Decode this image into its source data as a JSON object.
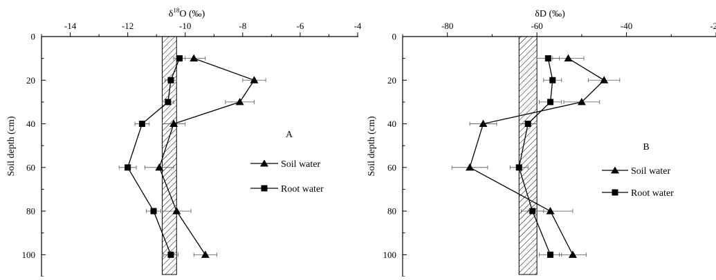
{
  "chart_data": [
    {
      "type": "line",
      "panel_label": "A",
      "title": "",
      "xlabel_main": "δ",
      "xlabel_sup": "18",
      "xlabel_rest": "O  (‰)",
      "ylabel": "Soil depth (cm)",
      "xlim": [
        -15,
        -4
      ],
      "ylim": [
        0,
        110
      ],
      "xticks": [
        -14,
        -12,
        -10,
        -8,
        -6,
        -4
      ],
      "yticks": [
        0,
        20,
        40,
        60,
        80,
        100
      ],
      "band": [
        -10.8,
        -10.3
      ],
      "series": [
        {
          "name": "Soil water",
          "marker": "triangle",
          "x": [
            -9.7,
            -7.6,
            -8.1,
            -10.4,
            -10.9,
            -10.3,
            -9.3
          ],
          "y": [
            10,
            20,
            30,
            40,
            60,
            80,
            100
          ],
          "err": [
            0.4,
            0.4,
            0.5,
            0.4,
            0.5,
            0.5,
            0.4
          ]
        },
        {
          "name": "Root water",
          "marker": "square",
          "x": [
            -10.2,
            -10.5,
            -10.6,
            -11.5,
            -12.0,
            -11.1,
            -10.5
          ],
          "y": [
            10,
            20,
            30,
            40,
            60,
            80,
            100
          ],
          "err": [
            0.2,
            0.2,
            0.2,
            0.25,
            0.3,
            0.25,
            0.25
          ]
        }
      ]
    },
    {
      "type": "line",
      "panel_label": "B",
      "title": "",
      "xlabel_main": "δD (‰)",
      "ylabel": "Soil depth (cm)",
      "xlim": [
        -90,
        -20
      ],
      "ylim": [
        0,
        110
      ],
      "xticks": [
        -80,
        -60,
        -40,
        -20
      ],
      "yticks": [
        0,
        20,
        40,
        60,
        80,
        100
      ],
      "band": [
        -64,
        -60
      ],
      "series": [
        {
          "name": "Soil water",
          "marker": "triangle",
          "x": [
            -53,
            -45,
            -50,
            -72,
            -75,
            -57,
            -52
          ],
          "y": [
            10,
            20,
            30,
            40,
            60,
            80,
            100
          ],
          "err": [
            3.5,
            3.5,
            4,
            3,
            4,
            5,
            3
          ]
        },
        {
          "name": "Root water",
          "marker": "square",
          "x": [
            -57.5,
            -56.5,
            -57,
            -62,
            -64,
            -61,
            -57
          ],
          "y": [
            10,
            20,
            30,
            40,
            60,
            80,
            100
          ],
          "err": [
            2.5,
            2,
            2.5,
            2,
            2,
            2.5,
            2.5
          ]
        }
      ]
    }
  ]
}
